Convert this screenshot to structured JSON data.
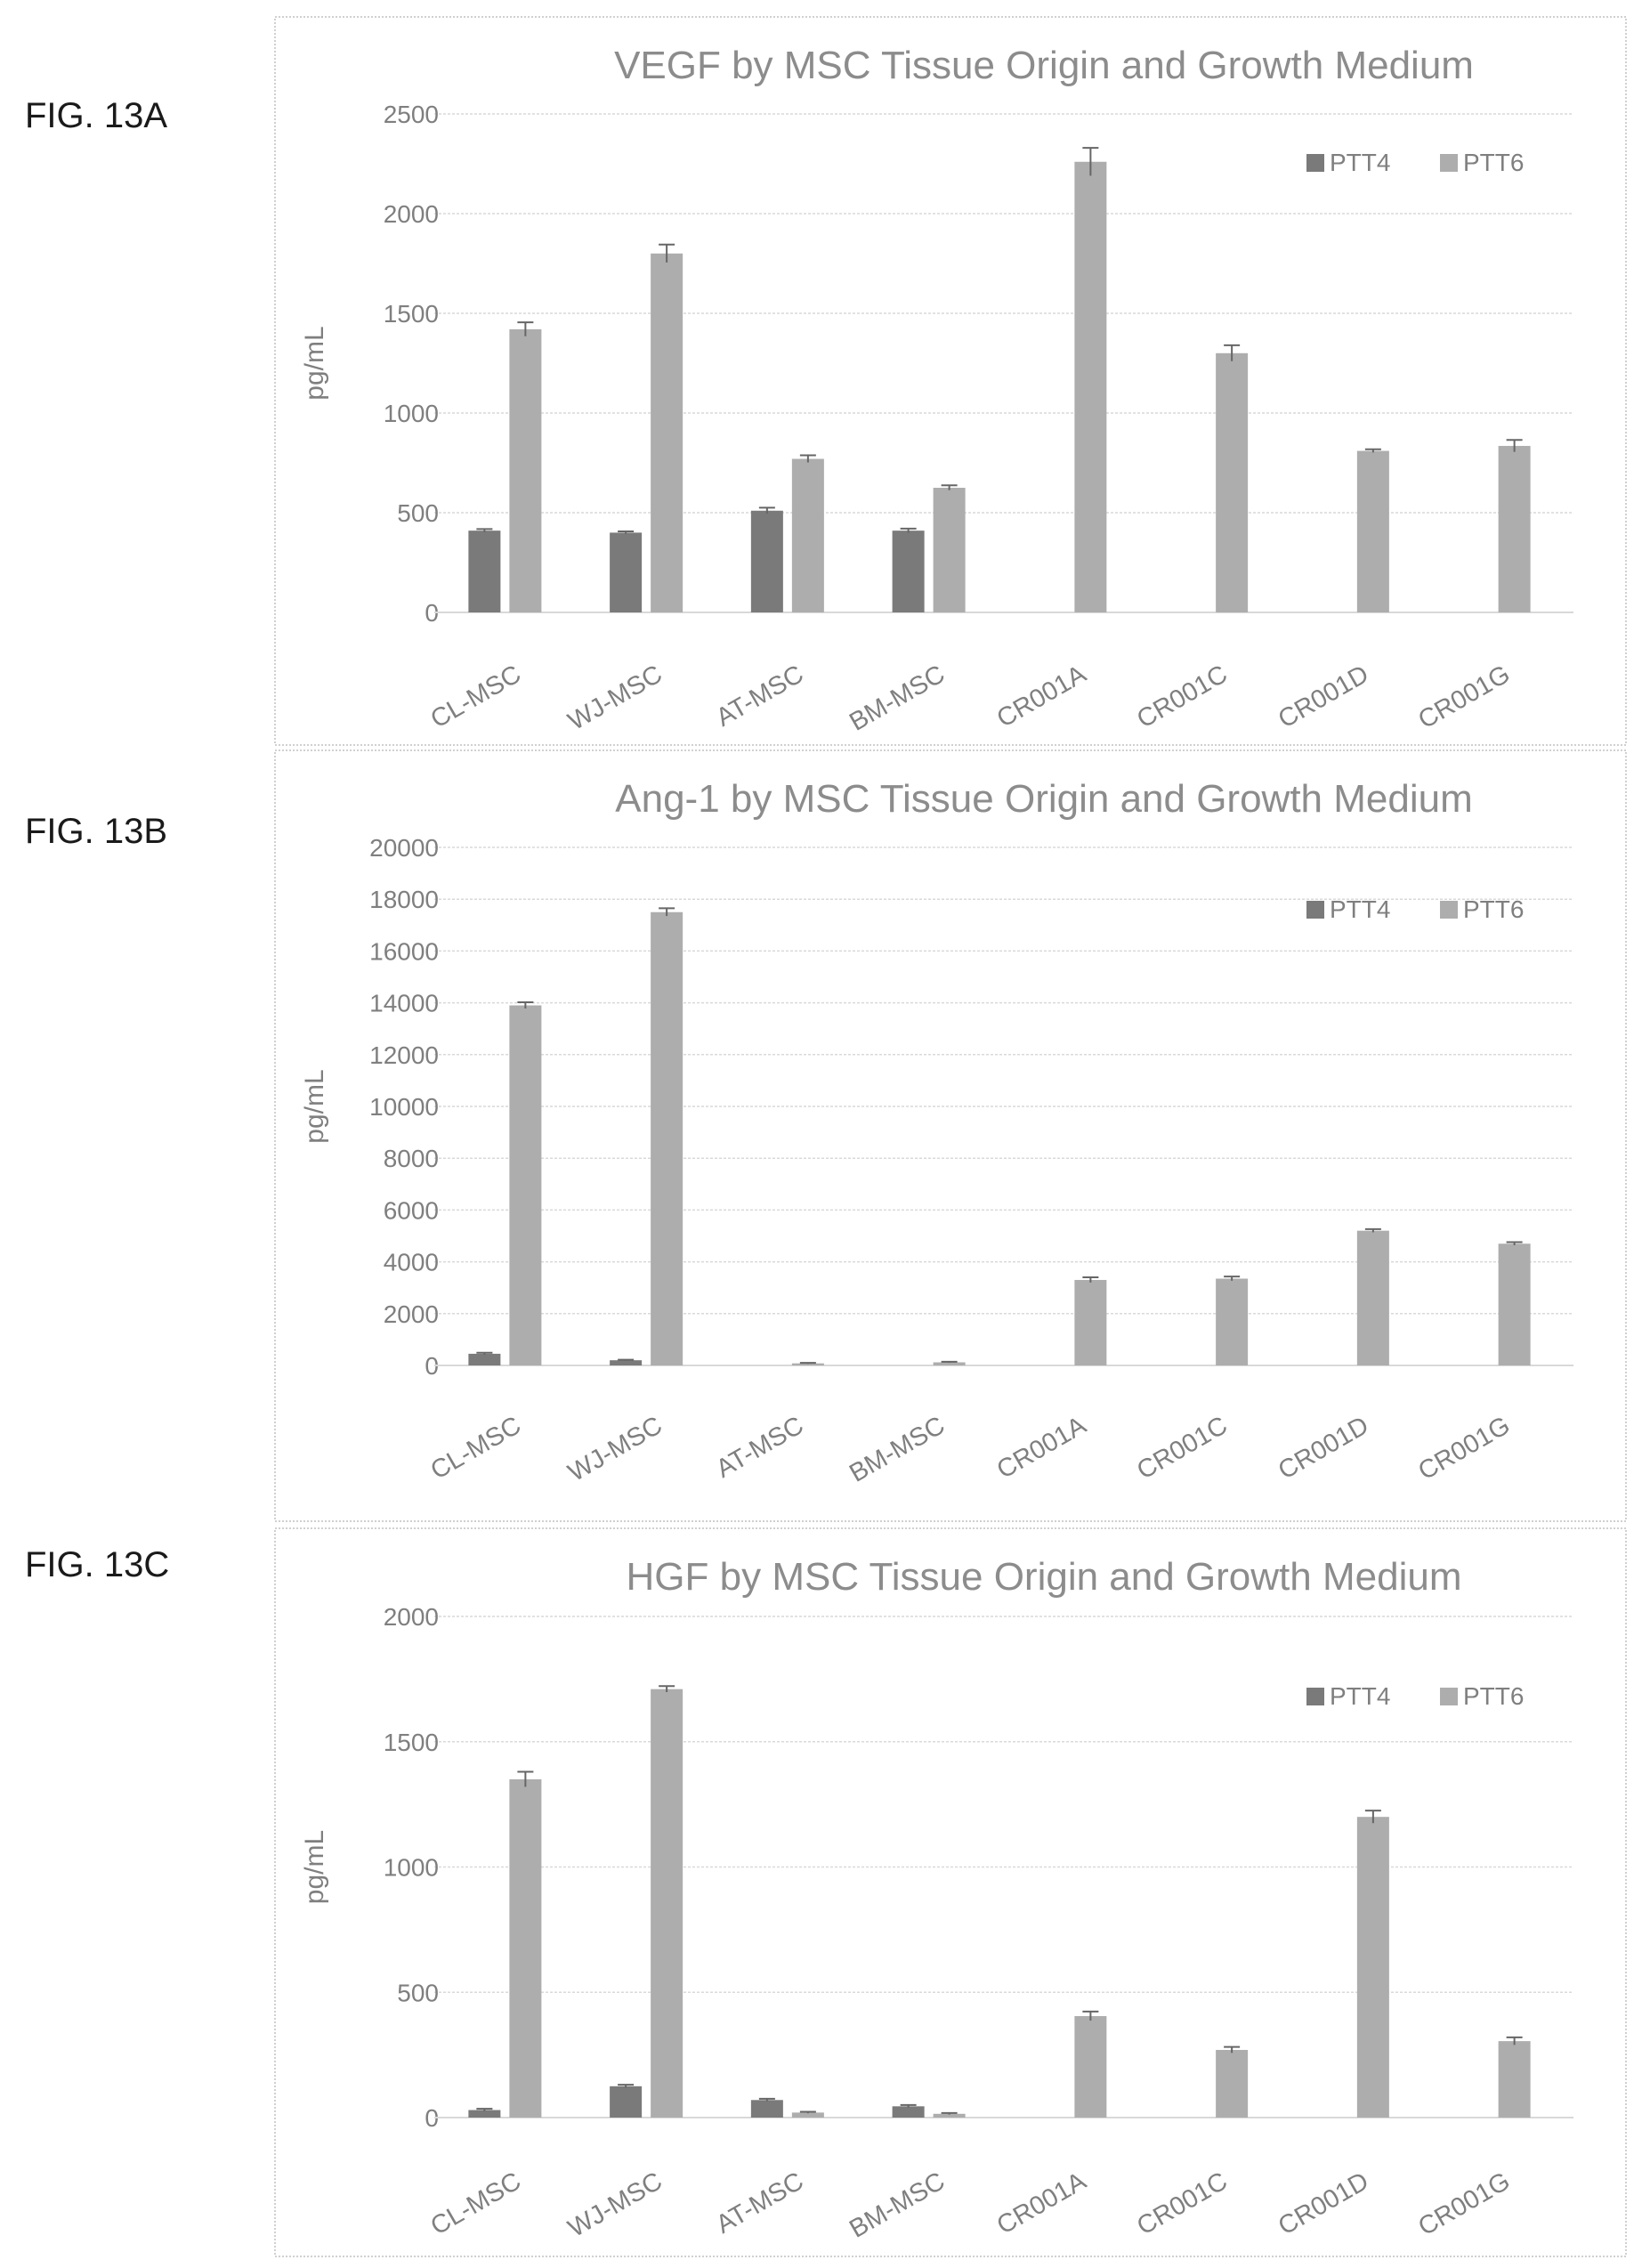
{
  "figures": [
    {
      "label": "FIG. 13A"
    },
    {
      "label": "FIG. 13B"
    },
    {
      "label": "FIG. 13C"
    }
  ],
  "colors": {
    "PTT4": "#7a7a7a",
    "PTT6": "#adadad"
  },
  "chart_data": [
    {
      "type": "bar",
      "title": "VEGF by MSC Tissue Origin and Growth Medium",
      "xlabel": "",
      "ylabel": "pg/mL",
      "ylim": [
        0,
        2500
      ],
      "yticks": [
        0,
        500,
        1000,
        1500,
        2000,
        2500
      ],
      "grid": true,
      "legend": "top-right",
      "categories": [
        "CL-MSC",
        "WJ-MSC",
        "AT-MSC",
        "BM-MSC",
        "CR001A",
        "CR001C",
        "CR001D",
        "CR001G"
      ],
      "series": [
        {
          "name": "PTT4",
          "values": [
            410,
            400,
            510,
            410,
            null,
            null,
            null,
            null
          ],
          "errors": [
            8,
            6,
            15,
            10,
            null,
            null,
            null,
            null
          ]
        },
        {
          "name": "PTT6",
          "values": [
            1420,
            1800,
            770,
            625,
            2260,
            1300,
            810,
            835
          ],
          "errors": [
            35,
            45,
            18,
            12,
            70,
            40,
            8,
            30
          ]
        }
      ]
    },
    {
      "type": "bar",
      "title": "Ang-1 by MSC Tissue Origin and Growth Medium",
      "xlabel": "",
      "ylabel": "pg/mL",
      "ylim": [
        0,
        20000
      ],
      "yticks": [
        0,
        2000,
        4000,
        6000,
        8000,
        10000,
        12000,
        14000,
        16000,
        18000,
        20000
      ],
      "grid": true,
      "legend": "top-right",
      "categories": [
        "CL-MSC",
        "WJ-MSC",
        "AT-MSC",
        "BM-MSC",
        "CR001A",
        "CR001C",
        "CR001D",
        "CR001G"
      ],
      "series": [
        {
          "name": "PTT4",
          "values": [
            450,
            200,
            null,
            null,
            null,
            null,
            null,
            null
          ],
          "errors": [
            40,
            20,
            null,
            null,
            null,
            null,
            null,
            null
          ]
        },
        {
          "name": "PTT6",
          "values": [
            13900,
            17500,
            80,
            120,
            3300,
            3350,
            5200,
            4700
          ],
          "errors": [
            120,
            150,
            20,
            20,
            100,
            80,
            60,
            60
          ]
        }
      ]
    },
    {
      "type": "bar",
      "title": "HGF by MSC Tissue Origin and Growth Medium",
      "xlabel": "",
      "ylabel": "pg/mL",
      "ylim": [
        0,
        2000
      ],
      "yticks": [
        0,
        500,
        1000,
        1500,
        2000
      ],
      "grid": true,
      "legend": "top-right",
      "categories": [
        "CL-MSC",
        "WJ-MSC",
        "AT-MSC",
        "BM-MSC",
        "CR001A",
        "CR001C",
        "CR001D",
        "CR001G"
      ],
      "series": [
        {
          "name": "PTT4",
          "values": [
            30,
            125,
            70,
            45,
            null,
            null,
            null,
            null
          ],
          "errors": [
            5,
            6,
            5,
            5,
            null,
            null,
            null,
            null
          ]
        },
        {
          "name": "PTT6",
          "values": [
            1350,
            1710,
            20,
            15,
            405,
            270,
            1200,
            305
          ],
          "errors": [
            30,
            12,
            3,
            3,
            18,
            12,
            25,
            15
          ]
        }
      ]
    }
  ]
}
